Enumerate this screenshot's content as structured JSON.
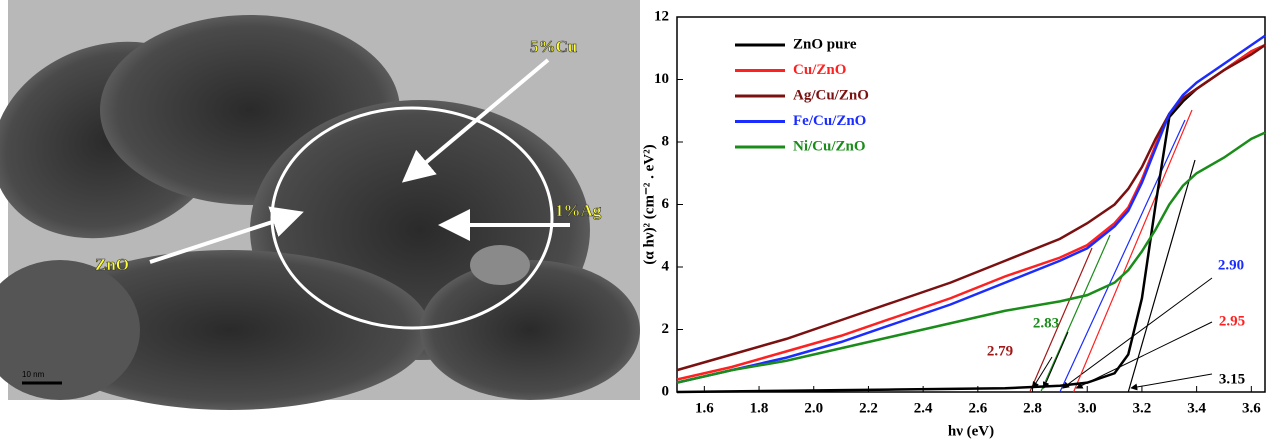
{
  "image": {
    "labels": [
      "5%Cu",
      "1%Ag",
      "ZnO"
    ],
    "scale_bar": "10 nm"
  },
  "chart_data": {
    "type": "line",
    "xlabel": "hν (eV)",
    "ylabel": "(α hν)² (cm⁻² . eV²)",
    "x": [
      1.5,
      1.7,
      1.9,
      2.1,
      2.3,
      2.5,
      2.7,
      2.9,
      3.0,
      3.1,
      3.15,
      3.2,
      3.25,
      3.3,
      3.35,
      3.4,
      3.5,
      3.6,
      3.65
    ],
    "series": [
      {
        "name": "ZnO pure",
        "color": "#000000",
        "values": [
          0.0,
          0.02,
          0.04,
          0.06,
          0.08,
          0.1,
          0.12,
          0.2,
          0.3,
          0.6,
          1.2,
          3,
          6,
          8.8,
          9.3,
          9.7,
          10.3,
          10.9,
          11.1
        ]
      },
      {
        "name": "Cu/ZnO",
        "color": "#ff2020",
        "values": [
          0.4,
          0.8,
          1.3,
          1.8,
          2.4,
          3.0,
          3.7,
          4.3,
          4.7,
          5.4,
          5.9,
          6.8,
          7.9,
          8.9,
          9.4,
          9.7,
          10.3,
          10.9,
          11.1
        ]
      },
      {
        "name": "Ag/Cu/ZnO",
        "color": "#7b1010",
        "values": [
          0.7,
          1.2,
          1.7,
          2.3,
          2.9,
          3.5,
          4.2,
          4.9,
          5.4,
          6.0,
          6.5,
          7.2,
          8.1,
          8.9,
          9.4,
          9.7,
          10.3,
          10.8,
          11.1
        ]
      },
      {
        "name": "Fe/Cu/ZnO",
        "color": "#1a2cff",
        "values": [
          0.3,
          0.7,
          1.1,
          1.6,
          2.2,
          2.8,
          3.5,
          4.2,
          4.6,
          5.3,
          5.8,
          6.7,
          7.8,
          8.9,
          9.5,
          9.9,
          10.5,
          11.1,
          11.4
        ]
      },
      {
        "name": "Ni/Cu/ZnO",
        "color": "#1a8c1a",
        "values": [
          0.3,
          0.7,
          1.0,
          1.4,
          1.8,
          2.2,
          2.6,
          2.9,
          3.1,
          3.5,
          3.9,
          4.5,
          5.2,
          6.0,
          6.6,
          7.0,
          7.5,
          8.1,
          8.3
        ]
      }
    ],
    "annotations": [
      {
        "label": "2.79",
        "value": 2.79,
        "color": "#a01818"
      },
      {
        "label": "2.83",
        "value": 2.83,
        "color": "#1a8c1a"
      },
      {
        "label": "2.90",
        "value": 2.9,
        "color": "#1a2cff"
      },
      {
        "label": "2.95",
        "value": 2.95,
        "color": "#ff2020"
      },
      {
        "label": "3.15",
        "value": 3.15,
        "color": "#000000"
      }
    ],
    "xlim": [
      1.5,
      3.65
    ],
    "ylim": [
      0,
      12
    ],
    "xticks": [
      1.6,
      1.8,
      {
        "value": 2,
        "label": "2.0"
      },
      2.2,
      2.4,
      2.6,
      2.8,
      {
        "value": 3,
        "label": "3.0"
      },
      3.2,
      3.4,
      3.6
    ],
    "yticks": [
      0,
      2,
      4,
      6,
      8,
      10,
      12
    ],
    "legend": "upper left"
  }
}
